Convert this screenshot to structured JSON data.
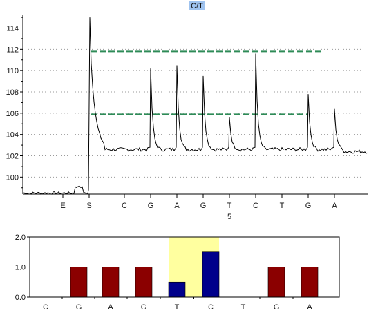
{
  "title": "C/T",
  "title_bg_color": "#9fc3ef",
  "chart_data": [
    {
      "type": "line",
      "name": "pyrogram",
      "ylim": [
        98.4,
        115.2
      ],
      "yticks": [
        100,
        102,
        104,
        106,
        108,
        110,
        112,
        114
      ],
      "grid": "horizontal-dotted",
      "categories": [
        "E",
        "S",
        "C",
        "G",
        "A",
        "G",
        "T",
        "C",
        "T",
        "G",
        "A"
      ],
      "position_label": "5",
      "position_label_under": "T",
      "trace_color": "#000000",
      "threshold_color": "#2e8b57",
      "thresholds": [
        {
          "y": 111.8,
          "from": "S",
          "to": "G"
        },
        {
          "y": 105.9,
          "from": "S",
          "to": "G"
        }
      ],
      "baseline_before_S": 98.5,
      "baseline_after_S": 102.6,
      "peaks": [
        {
          "label": "S",
          "height": 115.0
        },
        {
          "label": "G",
          "height": 110.2
        },
        {
          "label": "A",
          "height": 110.5
        },
        {
          "label": "G",
          "height": 109.5
        },
        {
          "label": "T",
          "height": 105.6
        },
        {
          "label": "C",
          "height": 111.6
        },
        {
          "label": "G",
          "height": 107.8
        },
        {
          "label": "A",
          "height": 106.4
        }
      ]
    },
    {
      "type": "bar",
      "name": "dispensation-histogram",
      "ylim": [
        0,
        2.0
      ],
      "yticks": [
        "0.0",
        "1.0",
        "2.0"
      ],
      "reference_line": 1.0,
      "categories": [
        "C",
        "G",
        "A",
        "G",
        "T",
        "C",
        "T",
        "G",
        "A"
      ],
      "values": [
        0,
        1.0,
        1.0,
        1.0,
        0.5,
        1.5,
        0,
        1.0,
        1.0
      ],
      "bar_colors": [
        "#8b0000",
        "#8b0000",
        "#8b0000",
        "#8b0000",
        "#00008b",
        "#00008b",
        "#8b0000",
        "#8b0000",
        "#8b0000"
      ],
      "highlight": {
        "from": "T",
        "to": "C",
        "index_from": 4,
        "index_to": 5,
        "color": "#ffff9f"
      }
    }
  ]
}
